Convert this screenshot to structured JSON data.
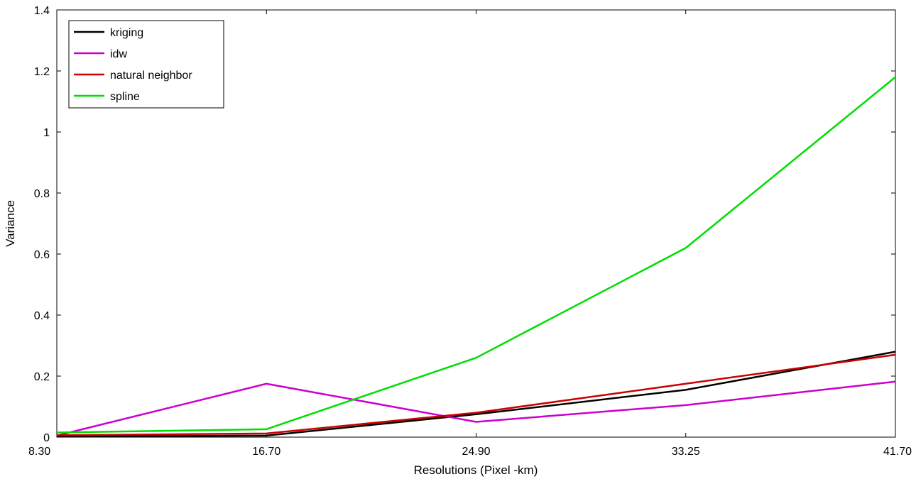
{
  "chart_data": {
    "type": "line",
    "title": "",
    "xlabel": "Resolutions (Pixel -km)",
    "ylabel": "Variance",
    "categories": [
      "8.30",
      "16.70",
      "24.90",
      "33.25",
      "41.70"
    ],
    "ylim": [
      0,
      1.4
    ],
    "yticks": [
      "0",
      "0.2",
      "0.4",
      "0.6",
      "0.8",
      "1",
      "1.2",
      "1.4"
    ],
    "legend_position": "top-left",
    "grid": false,
    "series": [
      {
        "name": "kriging",
        "color": "#000000",
        "values": [
          0.002,
          0.005,
          0.075,
          0.155,
          0.28
        ]
      },
      {
        "name": "idw",
        "color": "#cc00cc",
        "values": [
          0.005,
          0.175,
          0.05,
          0.105,
          0.182
        ]
      },
      {
        "name": "natural neighbor",
        "color": "#cc0000",
        "values": [
          0.006,
          0.012,
          0.08,
          0.175,
          0.27
        ]
      },
      {
        "name": "spline",
        "color": "#00dd00",
        "values": [
          0.015,
          0.026,
          0.26,
          0.62,
          1.18
        ]
      }
    ]
  }
}
